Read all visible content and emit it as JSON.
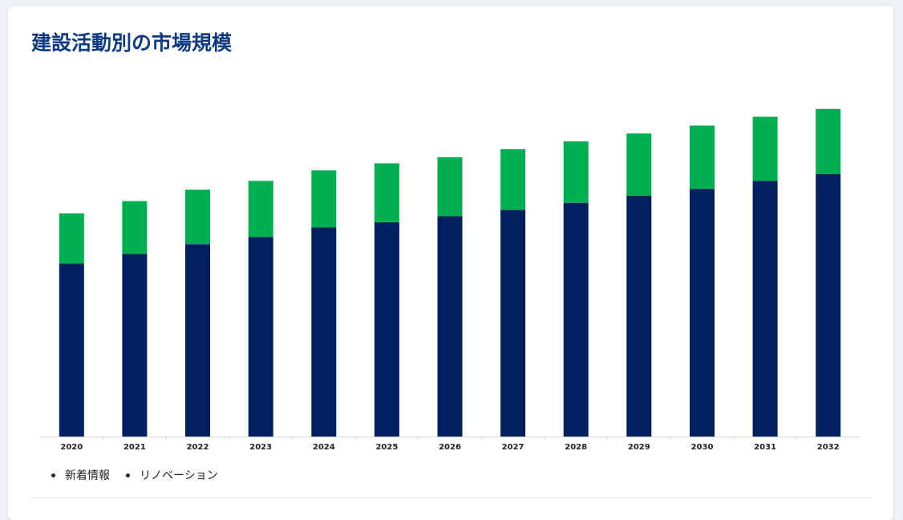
{
  "title": "建設活動別の市場規模",
  "chart_data": {
    "type": "bar",
    "stacked": true,
    "categories": [
      "2020",
      "2021",
      "2022",
      "2023",
      "2024",
      "2025",
      "2026",
      "2027",
      "2028",
      "2029",
      "2030",
      "2031",
      "2032"
    ],
    "series": [
      {
        "name": "新着情報",
        "color": "#00205f",
        "values": [
          197,
          208,
          219,
          227,
          238,
          244,
          251,
          258,
          266,
          274,
          282,
          291,
          299
        ]
      },
      {
        "name": "リノベーション",
        "color": "#00b050",
        "values": [
          57,
          60,
          62,
          64,
          65,
          67,
          67,
          69,
          70,
          71,
          72,
          73,
          74
        ]
      }
    ],
    "ylim": [
      0,
      380
    ],
    "grid": false,
    "legend_position": "bottom-left"
  },
  "legend": [
    {
      "label": "新着情報"
    },
    {
      "label": "リノベーション"
    }
  ]
}
